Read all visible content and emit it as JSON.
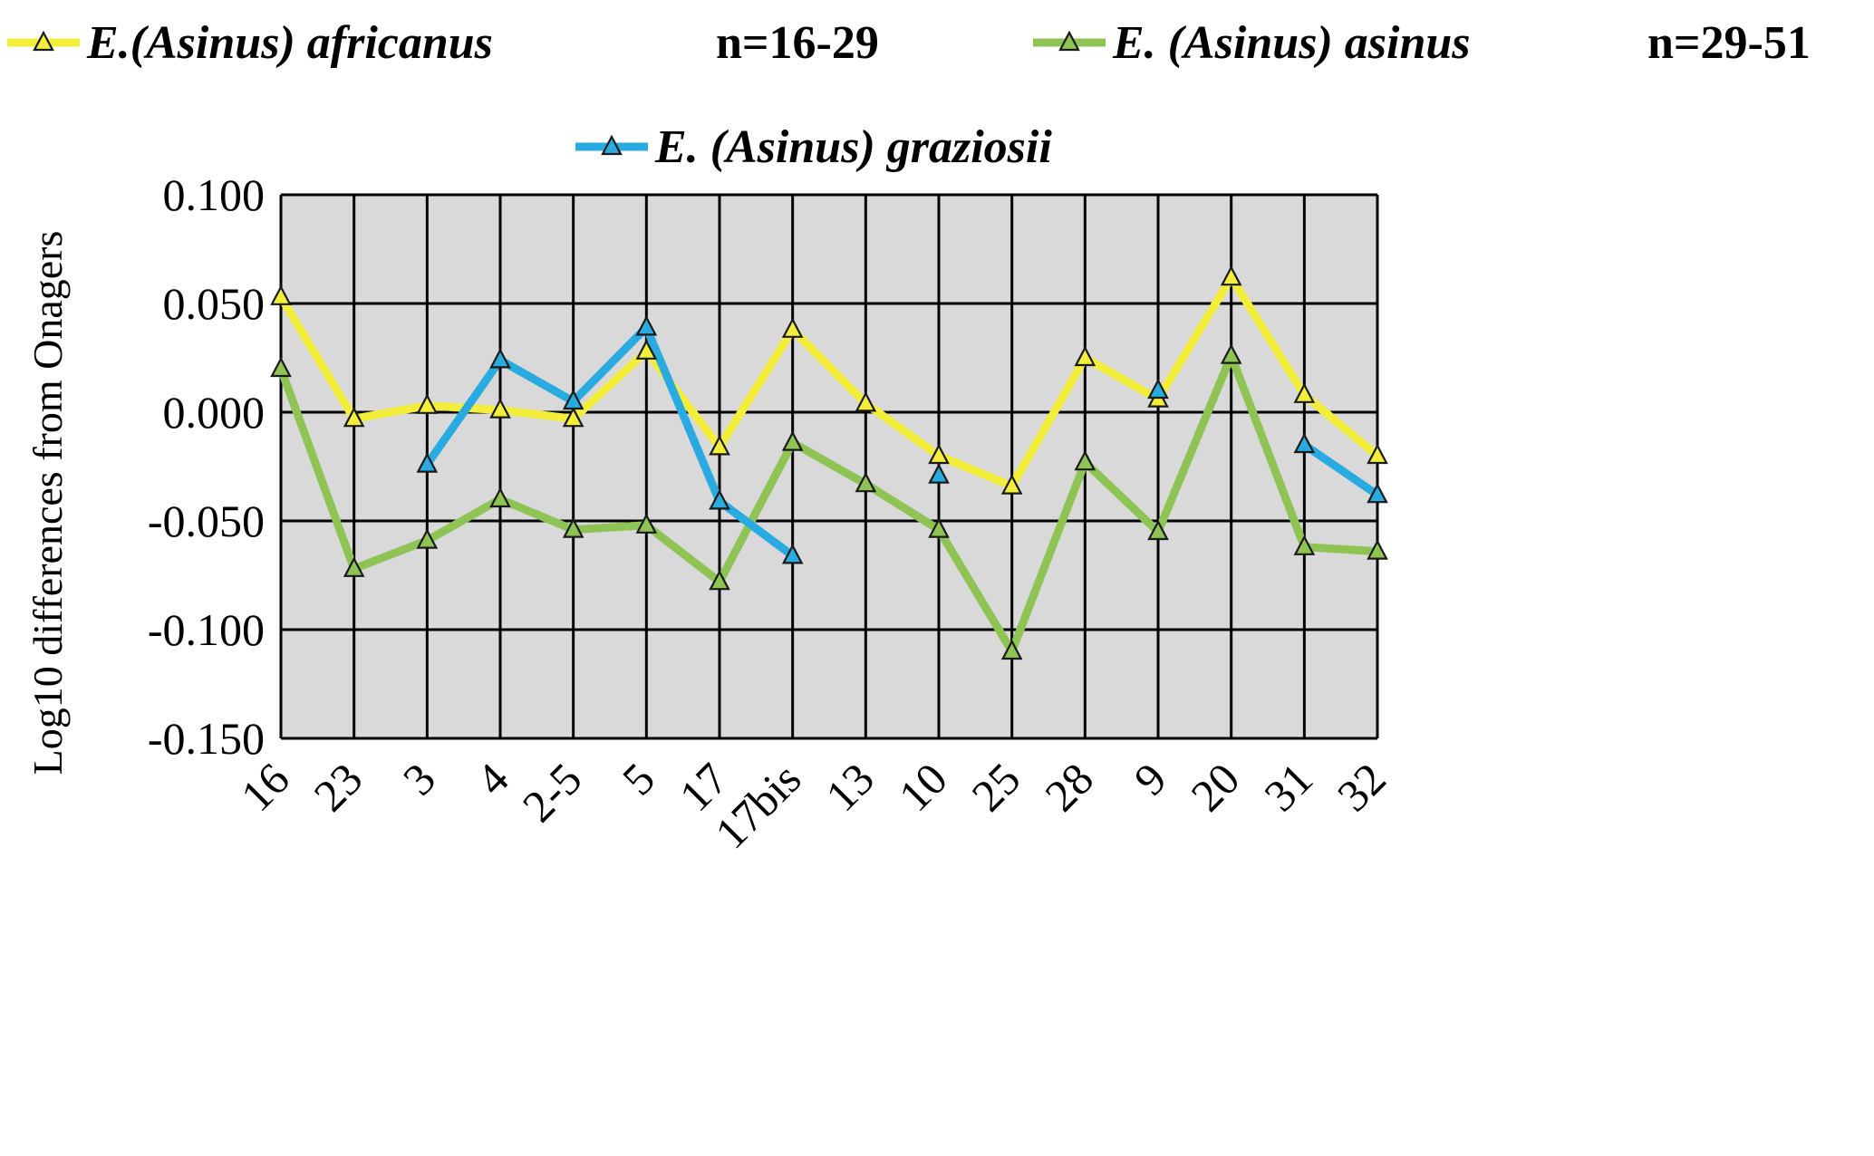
{
  "chart_data": {
    "type": "line",
    "title": "",
    "xlabel": "",
    "ylabel": "Log10 differences from Onagers",
    "ylim": [
      -0.15,
      0.1
    ],
    "yticks": [
      "0.100",
      "0.050",
      "0.000",
      "-0.050",
      "-0.100",
      "-0.150"
    ],
    "grid": true,
    "legend_position": "top",
    "categories": [
      "16",
      "23",
      "3",
      "4",
      "2-5",
      "5",
      "17",
      "17bis",
      "13",
      "10",
      "25",
      "28",
      "9",
      "20",
      "31",
      "32"
    ],
    "series": [
      {
        "name": "E.(Asinus) africanus",
        "n_label": "n=16-29",
        "color": "#f2ee3a",
        "values": [
          0.053,
          -0.003,
          0.003,
          0.001,
          -0.003,
          0.028,
          -0.016,
          0.038,
          0.004,
          -0.02,
          -0.034,
          0.025,
          0.006,
          0.062,
          0.008,
          -0.02
        ]
      },
      {
        "name": "E. (Asinus) asinus",
        "n_label": "n=29-51",
        "color": "#8fc454",
        "values": [
          0.02,
          -0.072,
          -0.059,
          -0.04,
          -0.054,
          -0.052,
          -0.078,
          -0.014,
          -0.033,
          -0.054,
          -0.11,
          -0.023,
          -0.055,
          0.026,
          -0.062,
          -0.064
        ]
      },
      {
        "name": "E. (Asinus) graziosii",
        "n_label": "",
        "color": "#29abe2",
        "values": [
          null,
          null,
          -0.024,
          0.024,
          0.005,
          0.039,
          -0.041,
          -0.066,
          null,
          -0.029,
          null,
          null,
          0.01,
          null,
          -0.015,
          -0.038
        ]
      }
    ]
  }
}
